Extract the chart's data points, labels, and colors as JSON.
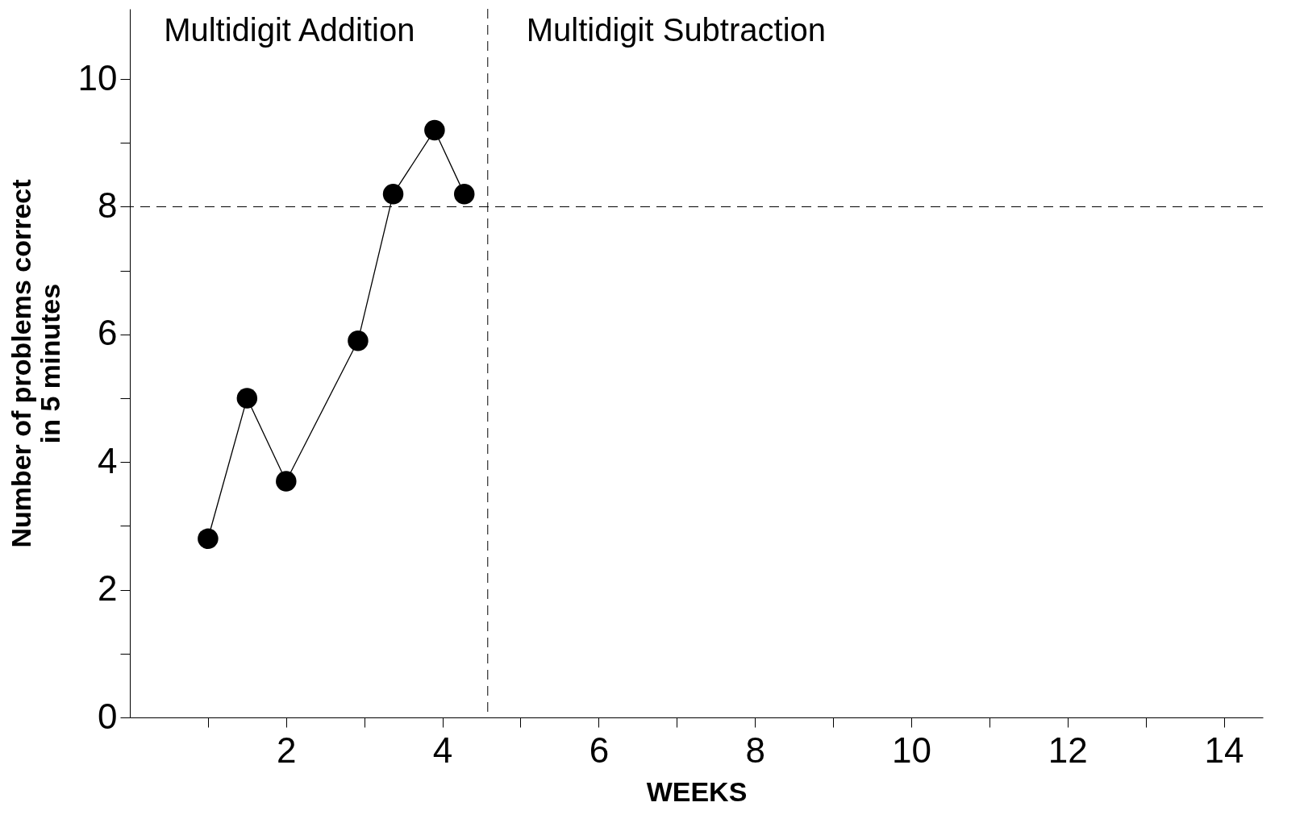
{
  "chart_data": {
    "type": "line",
    "xlabel": "WEEKS",
    "ylabel": "Number of problems correct\nin 5 minutes",
    "x": [
      1,
      1.5,
      2,
      2.92,
      3.37,
      3.9,
      4.28
    ],
    "series": [
      {
        "color": "#000000",
        "values": [
          2.8,
          5.0,
          3.7,
          5.9,
          8.2,
          9.2,
          8.2
        ]
      }
    ],
    "xlim": [
      0,
      14.5
    ],
    "ylim": [
      0,
      11.1
    ],
    "xticks": [
      {
        "value": 1,
        "label": null
      },
      2,
      {
        "value": 3,
        "label": null
      },
      4,
      {
        "value": 5,
        "label": null
      },
      6,
      {
        "value": 7,
        "label": null
      },
      8,
      {
        "value": 9,
        "label": null
      },
      10,
      {
        "value": 11,
        "label": null
      },
      12,
      {
        "value": 13,
        "label": null
      },
      14
    ],
    "yticks": [
      0,
      {
        "value": 1,
        "label": null
      },
      2,
      {
        "value": 3,
        "label": null
      },
      4,
      {
        "value": 5,
        "label": null
      },
      6,
      {
        "value": 7,
        "label": null
      },
      8,
      {
        "value": 9,
        "label": null
      },
      10
    ],
    "ref_lines": [
      {
        "axis": "y",
        "value": 8,
        "line_style": "dashed"
      },
      {
        "axis": "x",
        "value": 4.58,
        "line_style": "dashed"
      }
    ],
    "annotations": [
      "Multidigit Addition",
      "Multidigit Subtraction"
    ],
    "marker": "circle",
    "line_style": "solid",
    "grid": false
  }
}
